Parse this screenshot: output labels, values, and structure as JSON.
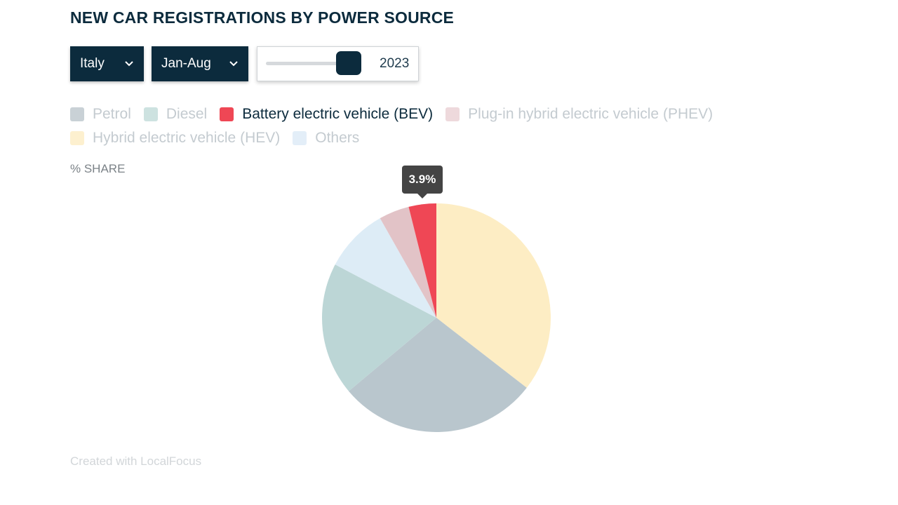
{
  "title": "NEW CAR REGISTRATIONS BY POWER SOURCE",
  "controls": {
    "country": "Italy",
    "period": "Jan-Aug",
    "year": "2023",
    "year_slider_position": 0.88,
    "ui_color": "#0c2b3d"
  },
  "axis_label": "% SHARE",
  "credit": "Created with LocalFocus",
  "chart_data": {
    "type": "pie",
    "start": "12 o'clock",
    "direction": "clockwise",
    "slices": [
      {
        "label": "Hybrid electric vehicle (HEV)",
        "value": 35.5,
        "color": "#fdedc4"
      },
      {
        "label": "Petrol",
        "value": 28.4,
        "color": "#b9c6cd"
      },
      {
        "label": "Diesel",
        "value": 18.8,
        "color": "#bcd6d6"
      },
      {
        "label": "Others",
        "value": 9.1,
        "color": "#ddecf6"
      },
      {
        "label": "Plug-in hybrid electric vehicle (PHEV)",
        "value": 4.3,
        "color": "#e2c3c7"
      },
      {
        "label": "Battery electric vehicle (BEV)",
        "value": 3.9,
        "color": "#ef4755"
      }
    ],
    "legend": [
      {
        "label": "Petrol",
        "color": "#c9d1d6",
        "active": false
      },
      {
        "label": "Diesel",
        "color": "#cde2e0",
        "active": false
      },
      {
        "label": "Battery electric vehicle (BEV)",
        "color": "#ef4755",
        "active": true
      },
      {
        "label": "Plug-in hybrid electric vehicle (PHEV)",
        "color": "#eed9dc",
        "active": false
      },
      {
        "label": "Hybrid electric vehicle (HEV)",
        "color": "#fdf0cf",
        "active": false
      },
      {
        "label": "Others",
        "color": "#e3eef8",
        "active": false
      }
    ],
    "tooltip": {
      "slice": "Battery electric vehicle (BEV)",
      "text": "3.9%"
    }
  }
}
